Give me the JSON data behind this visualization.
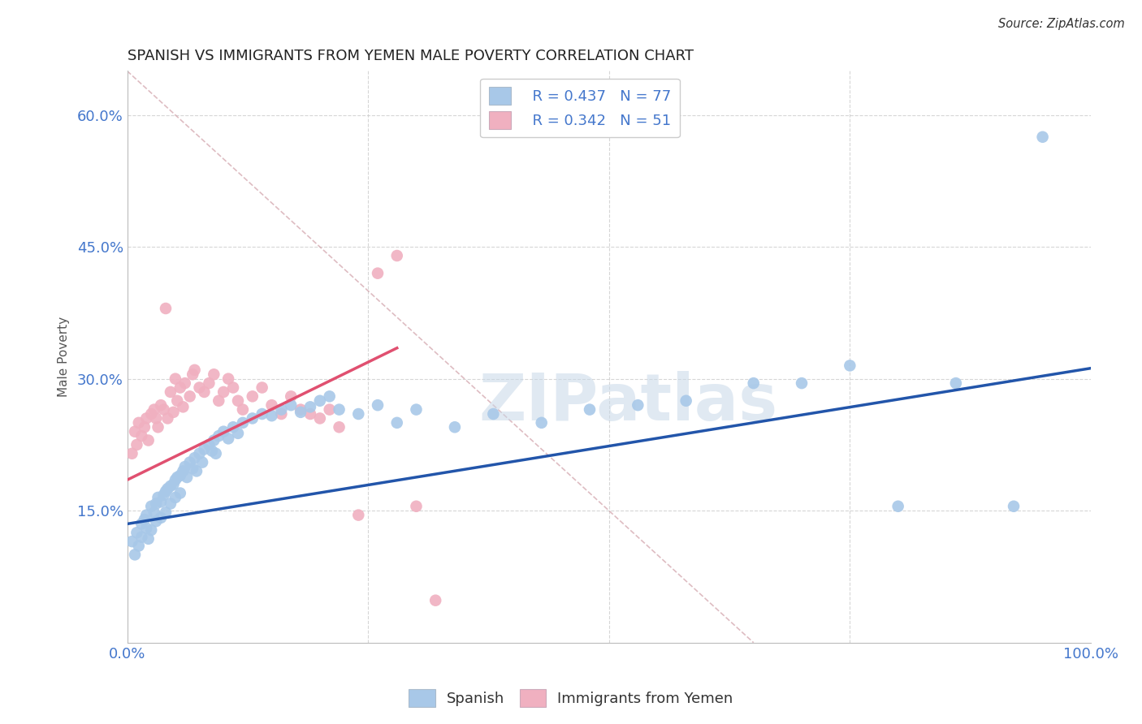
{
  "title": "SPANISH VS IMMIGRANTS FROM YEMEN MALE POVERTY CORRELATION CHART",
  "source": "Source: ZipAtlas.com",
  "ylabel": "Male Poverty",
  "watermark": "ZIPatlas",
  "legend_blue_R": "R = 0.437",
  "legend_blue_N": "N = 77",
  "legend_pink_R": "R = 0.342",
  "legend_pink_N": "N = 51",
  "legend_blue_label": "Spanish",
  "legend_pink_label": "Immigrants from Yemen",
  "xlim": [
    0.0,
    1.0
  ],
  "ylim": [
    0.0,
    0.65
  ],
  "yticks": [
    0.0,
    0.15,
    0.3,
    0.45,
    0.6
  ],
  "xticks": [
    0.0,
    0.25,
    0.5,
    0.75,
    1.0
  ],
  "xtick_labels": [
    "0.0%",
    "",
    "",
    "",
    "100.0%"
  ],
  "ytick_labels": [
    "",
    "15.0%",
    "30.0%",
    "45.0%",
    "60.0%"
  ],
  "blue_color": "#A8C8E8",
  "pink_color": "#F0B0C0",
  "blue_line_color": "#2255AA",
  "pink_line_color": "#E05070",
  "title_color": "#222222",
  "tick_color": "#4477CC",
  "source_color": "#333333",
  "background_color": "#FFFFFF",
  "grid_color": "#CCCCCC",
  "blue_x": [
    0.005,
    0.008,
    0.01,
    0.012,
    0.015,
    0.015,
    0.018,
    0.02,
    0.02,
    0.022,
    0.025,
    0.025,
    0.028,
    0.03,
    0.03,
    0.032,
    0.035,
    0.035,
    0.038,
    0.04,
    0.04,
    0.042,
    0.045,
    0.045,
    0.048,
    0.05,
    0.05,
    0.052,
    0.055,
    0.055,
    0.058,
    0.06,
    0.062,
    0.065,
    0.068,
    0.07,
    0.072,
    0.075,
    0.078,
    0.08,
    0.085,
    0.088,
    0.09,
    0.092,
    0.095,
    0.1,
    0.105,
    0.11,
    0.115,
    0.12,
    0.13,
    0.14,
    0.15,
    0.16,
    0.17,
    0.18,
    0.19,
    0.2,
    0.21,
    0.22,
    0.24,
    0.26,
    0.28,
    0.3,
    0.34,
    0.38,
    0.43,
    0.48,
    0.53,
    0.58,
    0.65,
    0.7,
    0.75,
    0.8,
    0.86,
    0.92,
    0.95
  ],
  "blue_y": [
    0.115,
    0.1,
    0.125,
    0.11,
    0.135,
    0.12,
    0.14,
    0.13,
    0.145,
    0.118,
    0.155,
    0.128,
    0.148,
    0.158,
    0.138,
    0.165,
    0.16,
    0.142,
    0.168,
    0.172,
    0.148,
    0.175,
    0.178,
    0.158,
    0.18,
    0.185,
    0.165,
    0.188,
    0.19,
    0.17,
    0.195,
    0.2,
    0.188,
    0.205,
    0.198,
    0.21,
    0.195,
    0.215,
    0.205,
    0.22,
    0.225,
    0.218,
    0.23,
    0.215,
    0.235,
    0.24,
    0.232,
    0.245,
    0.238,
    0.25,
    0.255,
    0.26,
    0.258,
    0.265,
    0.27,
    0.262,
    0.268,
    0.275,
    0.28,
    0.265,
    0.26,
    0.27,
    0.25,
    0.265,
    0.245,
    0.26,
    0.25,
    0.265,
    0.27,
    0.275,
    0.295,
    0.295,
    0.315,
    0.155,
    0.295,
    0.155,
    0.575
  ],
  "pink_x": [
    0.005,
    0.008,
    0.01,
    0.012,
    0.015,
    0.018,
    0.02,
    0.022,
    0.025,
    0.028,
    0.03,
    0.032,
    0.035,
    0.038,
    0.04,
    0.042,
    0.045,
    0.048,
    0.05,
    0.052,
    0.055,
    0.058,
    0.06,
    0.065,
    0.068,
    0.07,
    0.075,
    0.08,
    0.085,
    0.09,
    0.095,
    0.1,
    0.105,
    0.11,
    0.115,
    0.12,
    0.13,
    0.14,
    0.15,
    0.16,
    0.17,
    0.18,
    0.19,
    0.2,
    0.21,
    0.22,
    0.24,
    0.26,
    0.28,
    0.3,
    0.32
  ],
  "pink_y": [
    0.215,
    0.24,
    0.225,
    0.25,
    0.235,
    0.245,
    0.255,
    0.23,
    0.26,
    0.265,
    0.255,
    0.245,
    0.27,
    0.265,
    0.38,
    0.255,
    0.285,
    0.262,
    0.3,
    0.275,
    0.29,
    0.268,
    0.295,
    0.28,
    0.305,
    0.31,
    0.29,
    0.285,
    0.295,
    0.305,
    0.275,
    0.285,
    0.3,
    0.29,
    0.275,
    0.265,
    0.28,
    0.29,
    0.27,
    0.26,
    0.28,
    0.265,
    0.26,
    0.255,
    0.265,
    0.245,
    0.145,
    0.42,
    0.44,
    0.155,
    0.048
  ],
  "blue_line_x0": 0.0,
  "blue_line_y0": 0.135,
  "blue_line_x1": 1.0,
  "blue_line_y1": 0.312,
  "pink_line_x0": 0.0,
  "pink_line_y0": 0.185,
  "pink_line_x1": 0.28,
  "pink_line_y1": 0.335
}
